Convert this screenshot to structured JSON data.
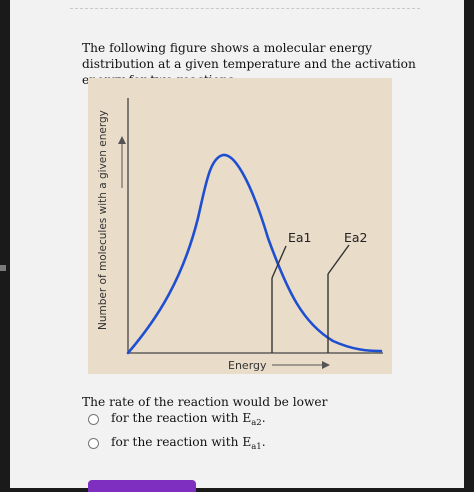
{
  "intro_text": "The following figure shows a molecular energy distribution at a given temperature and the activation energy for two reactions.",
  "chart_data": {
    "type": "line",
    "title": "",
    "xlabel": "Energy",
    "ylabel": "Number of molecules with a given energy",
    "annotations": [
      "Ea1",
      "Ea2"
    ],
    "grid": false,
    "legend": "none"
  },
  "question": {
    "prompt": "The rate of the reaction would be lower",
    "options": [
      {
        "prefix": "for the reaction with E",
        "sub": "a2",
        "suffix": "."
      },
      {
        "prefix": "for the reaction with E",
        "sub": "a1",
        "suffix": "."
      }
    ]
  },
  "colors": {
    "curve": "#1f4fd1",
    "figure_bg": "#e9dcc9",
    "submit": "#7e2fbf"
  }
}
